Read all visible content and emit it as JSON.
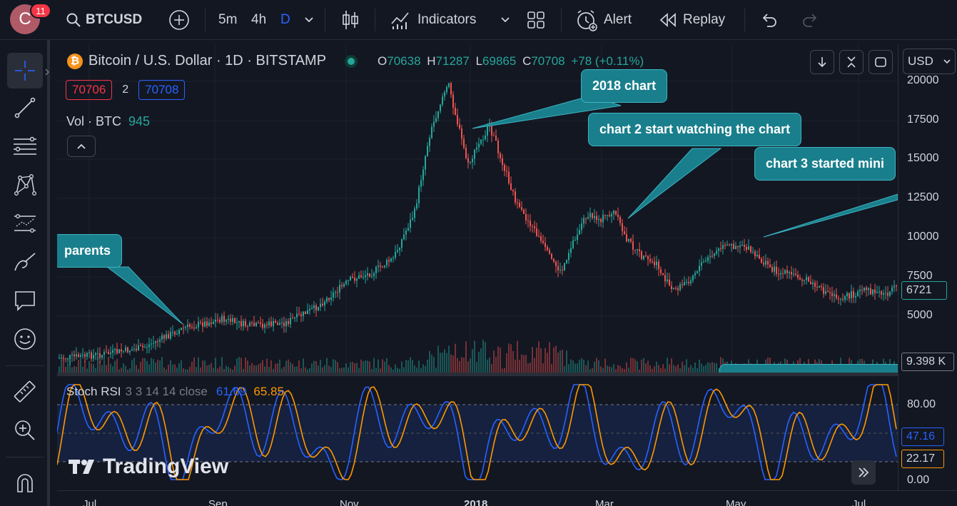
{
  "topbar": {
    "avatar_letter": "C",
    "notifications": "11",
    "symbol": "BTCUSD",
    "intervals": [
      "5m",
      "4h",
      "D"
    ],
    "indicators_label": "Indicators",
    "alert_label": "Alert",
    "replay_label": "Replay"
  },
  "legend": {
    "title": "Bitcoin / U.S. Dollar · 1D · BITSTAMP",
    "o_label": "O",
    "o_value": "70638",
    "h_label": "H",
    "h_value": "71287",
    "l_label": "L",
    "l_value": "69865",
    "c_label": "C",
    "c_value": "70708",
    "change": "+78 (+0.11%)",
    "sell_price": "70706",
    "spread": "2",
    "buy_price": "70708",
    "vol_label": "Vol · BTC",
    "vol_value": "945",
    "currency": "USD"
  },
  "callouts": {
    "c1": "2018 chart",
    "c2": "chart 2 start watching the chart",
    "c3": "chart 3 started mini",
    "c4": "parents"
  },
  "price_axis": {
    "ticks": [
      "20000",
      "17500",
      "15000",
      "12500",
      "10000",
      "7500",
      "5000"
    ],
    "last_price": "6721",
    "volume_badge": "9.398 K"
  },
  "rsi": {
    "label": "Stoch RSI",
    "params": "3 3 14 14 close",
    "k_value": "61.69",
    "d_value": "65.85",
    "ticks": [
      "80.00",
      "0.00"
    ],
    "badge_k": "47.16",
    "badge_d": "22.17",
    "watermark": "TradingView"
  },
  "time_axis": {
    "labels": [
      "Jul",
      "Sep",
      "Nov",
      "2018",
      "Mar",
      "May",
      "Jul"
    ]
  },
  "colors": {
    "up": "#26a69a",
    "down": "#ef5350",
    "accent": "#2962ff",
    "k_line": "#2962ff",
    "d_line": "#ff9800",
    "callout": "#1a7f8c"
  }
}
